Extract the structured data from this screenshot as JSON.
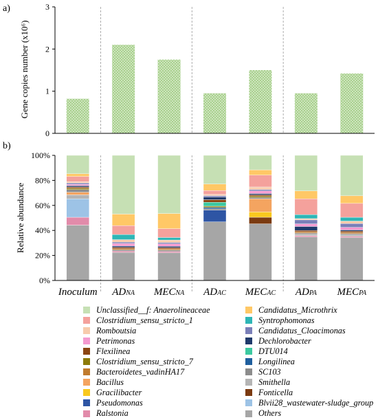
{
  "panel_labels": {
    "a": "a)",
    "b": "b)"
  },
  "colors": {
    "gene_bar_fill": "#A9D18E",
    "Unclassified__f: Anaerolineaceae": "#C6E0B4",
    "Candidatus_Microthrix": "#FFC866",
    "Clostridium_sensu_stricto_1": "#F4A19C",
    "Syntrophomonas": "#2EB6B6",
    "Romboutsia": "#F7CBAC",
    "Candidatus_Cloacimonas": "#7A7FB8",
    "Petrimonas": "#F49AD0",
    "Dechlorobacter": "#1F3A6B",
    "Flexilinea": "#8B4513",
    "DTU014": "#3CC9A0",
    "Clostridium_sensu_stricto_7": "#8C7A0A",
    "Longilinea": "#1F5F9E",
    "Bacteroidetes_vadinHA17": "#C07B2E",
    "SC103": "#8C8C8C",
    "Bacillus": "#F4A460",
    "Smithella": "#B5B5B5",
    "Gracilibacter": "#F8C81E",
    "Fonticella": "#7B3A10",
    "Pseudomonas": "#2E55A4",
    "Blvii28_wastewater-sludge_group": "#9DC3E6",
    "Ralstonia": "#E28BAA",
    "Others": "#A6A6A6"
  },
  "chart_data": [
    {
      "type": "bar",
      "panel": "a)",
      "categories": [
        "Inoculum",
        "ADNA",
        "MECNA",
        "ADAC",
        "MECAC",
        "ADPA",
        "MECPA"
      ],
      "category_labels": [
        {
          "main": "Inoculum",
          "sub": ""
        },
        {
          "main": "AD",
          "sub": "NA"
        },
        {
          "main": "MEC",
          "sub": "NA"
        },
        {
          "main": "AD",
          "sub": "AC"
        },
        {
          "main": "MEC",
          "sub": "AC"
        },
        {
          "main": "AD",
          "sub": "PA"
        },
        {
          "main": "MEC",
          "sub": "PA"
        }
      ],
      "values": [
        0.82,
        2.1,
        1.75,
        0.95,
        1.5,
        0.95,
        1.42
      ],
      "ylabel": "Gene copies number (x10⁶)",
      "ylim": [
        0,
        3
      ],
      "yticks": [
        "0",
        "1",
        "2",
        "3"
      ],
      "grid": false
    },
    {
      "type": "bar",
      "stacked": true,
      "panel": "b)",
      "categories": [
        "Inoculum",
        "ADNA",
        "MECNA",
        "ADAC",
        "MECAC",
        "ADPA",
        "MECPA"
      ],
      "ylabel": "Relative abundance",
      "ylim": [
        0,
        100
      ],
      "yticks": [
        "0%",
        "20%",
        "40%",
        "60%",
        "80%",
        "100%"
      ],
      "legend_position": "bottom",
      "series": [
        {
          "name": "Others",
          "values": [
            42,
            22,
            22,
            45,
            43,
            33,
            34
          ]
        },
        {
          "name": "Ralstonia",
          "values": [
            6,
            1,
            1,
            0,
            0,
            1,
            1
          ]
        },
        {
          "name": "Blvii28_wastewater-sludge_group",
          "values": [
            14,
            0,
            0,
            0,
            0,
            0,
            0
          ]
        },
        {
          "name": "Pseudomonas",
          "values": [
            0,
            0,
            0,
            9,
            0,
            0,
            0
          ]
        },
        {
          "name": "Fonticella",
          "values": [
            0,
            0,
            0,
            0,
            5,
            0,
            0
          ]
        },
        {
          "name": "Gracilibacter",
          "values": [
            0,
            0,
            0,
            0,
            4,
            0,
            0
          ]
        },
        {
          "name": "Smithella",
          "values": [
            3,
            0,
            0,
            0,
            0,
            1,
            1
          ]
        },
        {
          "name": "Bacillus",
          "values": [
            2,
            0,
            0,
            0,
            10,
            0,
            0
          ]
        },
        {
          "name": "SC103",
          "values": [
            2,
            1,
            1,
            1,
            1,
            1,
            1
          ]
        },
        {
          "name": "Bacteroidetes_vadinHA17",
          "values": [
            0,
            1,
            1,
            0,
            0,
            1,
            1
          ]
        },
        {
          "name": "Longilinea",
          "values": [
            0,
            0,
            0,
            1,
            0,
            0,
            0
          ]
        },
        {
          "name": "Clostridium_sensu_stricto_7",
          "values": [
            1,
            0,
            0,
            1,
            1,
            0,
            0
          ]
        },
        {
          "name": "DTU014",
          "values": [
            0,
            0,
            0,
            3,
            0,
            0,
            0
          ]
        },
        {
          "name": "Flexilinea",
          "values": [
            1,
            1,
            1,
            2,
            1,
            1,
            1
          ]
        },
        {
          "name": "Dechlorobacter",
          "values": [
            1,
            1,
            1,
            2,
            1,
            3,
            1
          ]
        },
        {
          "name": "Petrimonas",
          "values": [
            1,
            2,
            2,
            0,
            2,
            2,
            2
          ]
        },
        {
          "name": "Candidatus_Cloacimonas",
          "values": [
            1,
            1,
            1,
            1,
            1,
            3,
            3
          ]
        },
        {
          "name": "Romboutsia",
          "values": [
            1,
            2,
            2,
            1,
            2,
            1,
            2
          ]
        },
        {
          "name": "Syntrophomonas",
          "values": [
            0,
            4,
            2,
            0,
            0,
            3,
            3
          ]
        },
        {
          "name": "Clostridium_sensu_stricto_1",
          "values": [
            4,
            7,
            7,
            3,
            9,
            12,
            11
          ]
        },
        {
          "name": "Candidatus_Microthrix",
          "values": [
            2,
            9,
            12,
            5,
            4,
            6,
            6
          ]
        },
        {
          "name": "Unclassified__f: Anaerolineaceae",
          "values": [
            14,
            46,
            46,
            22,
            11,
            27,
            32
          ]
        }
      ]
    }
  ],
  "legend": {
    "left": [
      "Unclassified__f: Anaerolineaceae",
      "Clostridium_sensu_stricto_1",
      "Romboutsia",
      "Petrimonas",
      "Flexilinea",
      "Clostridium_sensu_stricto_7",
      "Bacteroidetes_vadinHA17",
      "Bacillus",
      "Gracilibacter",
      "Pseudomonas",
      "Ralstonia"
    ],
    "right": [
      "Candidatus_Microthrix",
      "Syntrophomonas",
      "Candidatus_Cloacimonas",
      "Dechlorobacter",
      "DTU014",
      "Longilinea",
      "SC103",
      "Smithella",
      "Fonticella",
      "Blvii28_wastewater-sludge_group",
      "Others"
    ]
  }
}
